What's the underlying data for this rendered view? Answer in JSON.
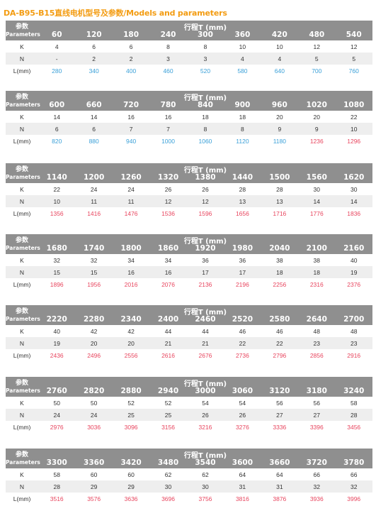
{
  "title": "DA-B95-B15直线电机型号及参数/Models and parameters",
  "header": {
    "param_zh": "参数",
    "param_en": "Parameters",
    "stroke_label": "行程T (mm)"
  },
  "row_labels": {
    "k": "K",
    "n": "N",
    "l": "L(mm)"
  },
  "colors": {
    "title": "#f39c12",
    "header_bg": "#8f8f8f",
    "value_blue": "#3aa0d8",
    "value_red": "#e8455e"
  },
  "tables": [
    {
      "strokes": [
        "60",
        "120",
        "180",
        "240",
        "300",
        "360",
        "420",
        "480",
        "540"
      ],
      "k": [
        "4",
        "6",
        "6",
        "8",
        "8",
        "10",
        "10",
        "12",
        "12"
      ],
      "n": [
        "-",
        "2",
        "2",
        "3",
        "3",
        "4",
        "4",
        "5",
        "5"
      ],
      "l": [
        "280",
        "340",
        "400",
        "460",
        "520",
        "580",
        "640",
        "700",
        "760"
      ]
    },
    {
      "strokes": [
        "600",
        "660",
        "720",
        "780",
        "840",
        "900",
        "960",
        "1020",
        "1080"
      ],
      "k": [
        "14",
        "14",
        "16",
        "16",
        "18",
        "18",
        "20",
        "20",
        "22"
      ],
      "n": [
        "6",
        "6",
        "7",
        "7",
        "8",
        "8",
        "9",
        "9",
        "10"
      ],
      "l": [
        "820",
        "880",
        "940",
        "1000",
        "1060",
        "1120",
        "1180",
        "1236",
        "1296"
      ]
    },
    {
      "strokes": [
        "1140",
        "1200",
        "1260",
        "1320",
        "1380",
        "1440",
        "1500",
        "1560",
        "1620"
      ],
      "k": [
        "22",
        "24",
        "24",
        "26",
        "26",
        "28",
        "28",
        "30",
        "30"
      ],
      "n": [
        "10",
        "11",
        "11",
        "12",
        "12",
        "13",
        "13",
        "14",
        "14"
      ],
      "l": [
        "1356",
        "1416",
        "1476",
        "1536",
        "1596",
        "1656",
        "1716",
        "1776",
        "1836"
      ]
    },
    {
      "strokes": [
        "1680",
        "1740",
        "1800",
        "1860",
        "1920",
        "1980",
        "2040",
        "2100",
        "2160"
      ],
      "k": [
        "32",
        "32",
        "34",
        "34",
        "36",
        "36",
        "38",
        "38",
        "40"
      ],
      "n": [
        "15",
        "15",
        "16",
        "16",
        "17",
        "17",
        "18",
        "18",
        "19"
      ],
      "l": [
        "1896",
        "1956",
        "2016",
        "2076",
        "2136",
        "2196",
        "2256",
        "2316",
        "2376"
      ]
    },
    {
      "strokes": [
        "2220",
        "2280",
        "2340",
        "2400",
        "2460",
        "2520",
        "2580",
        "2640",
        "2700"
      ],
      "k": [
        "40",
        "42",
        "42",
        "44",
        "44",
        "46",
        "46",
        "48",
        "48"
      ],
      "n": [
        "19",
        "20",
        "20",
        "21",
        "21",
        "22",
        "22",
        "23",
        "23"
      ],
      "l": [
        "2436",
        "2496",
        "2556",
        "2616",
        "2676",
        "2736",
        "2796",
        "2856",
        "2916"
      ]
    },
    {
      "strokes": [
        "2760",
        "2820",
        "2880",
        "2940",
        "3000",
        "3060",
        "3120",
        "3180",
        "3240"
      ],
      "k": [
        "50",
        "50",
        "52",
        "52",
        "54",
        "54",
        "56",
        "56",
        "58"
      ],
      "n": [
        "24",
        "24",
        "25",
        "25",
        "26",
        "26",
        "27",
        "27",
        "28"
      ],
      "l": [
        "2976",
        "3036",
        "3096",
        "3156",
        "3216",
        "3276",
        "3336",
        "3396",
        "3456"
      ]
    },
    {
      "strokes": [
        "3300",
        "3360",
        "3420",
        "3480",
        "3540",
        "3600",
        "3660",
        "3720",
        "3780"
      ],
      "k": [
        "58",
        "60",
        "60",
        "62",
        "62",
        "64",
        "64",
        "66",
        "66"
      ],
      "n": [
        "28",
        "29",
        "29",
        "30",
        "30",
        "31",
        "31",
        "32",
        "32"
      ],
      "l": [
        "3516",
        "3576",
        "3636",
        "3696",
        "3756",
        "3816",
        "3876",
        "3936",
        "3996"
      ]
    }
  ]
}
